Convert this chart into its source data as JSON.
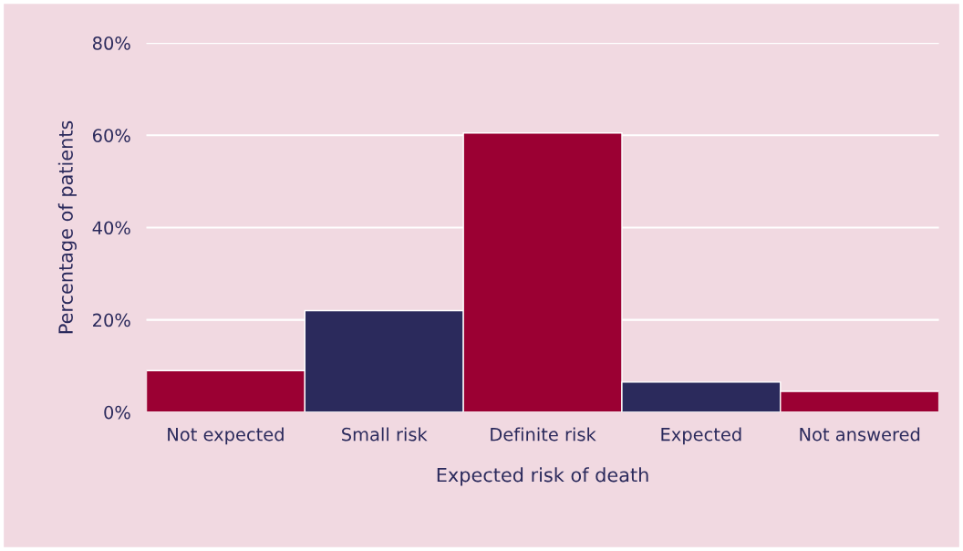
{
  "chart_data": {
    "type": "bar",
    "xlabel": "Expected risk of death",
    "ylabel": "Percentage of patients",
    "categories": [
      "Not expected",
      "Small risk",
      "Definite risk",
      "Expected",
      "Not answered"
    ],
    "values": [
      9,
      22,
      60.5,
      6.5,
      4.5
    ],
    "colors": [
      "#9b0033",
      "#2b2a5c",
      "#9b0033",
      "#2b2a5c",
      "#9b0033"
    ],
    "ylim": [
      0,
      80
    ],
    "yticks": [
      {
        "value": 0,
        "label": "0%"
      },
      {
        "value": 20,
        "label": "20%"
      },
      {
        "value": 40,
        "label": "40%"
      },
      {
        "value": 60,
        "label": "60%"
      },
      {
        "value": 80,
        "label": "80%"
      }
    ],
    "grid": "y"
  }
}
